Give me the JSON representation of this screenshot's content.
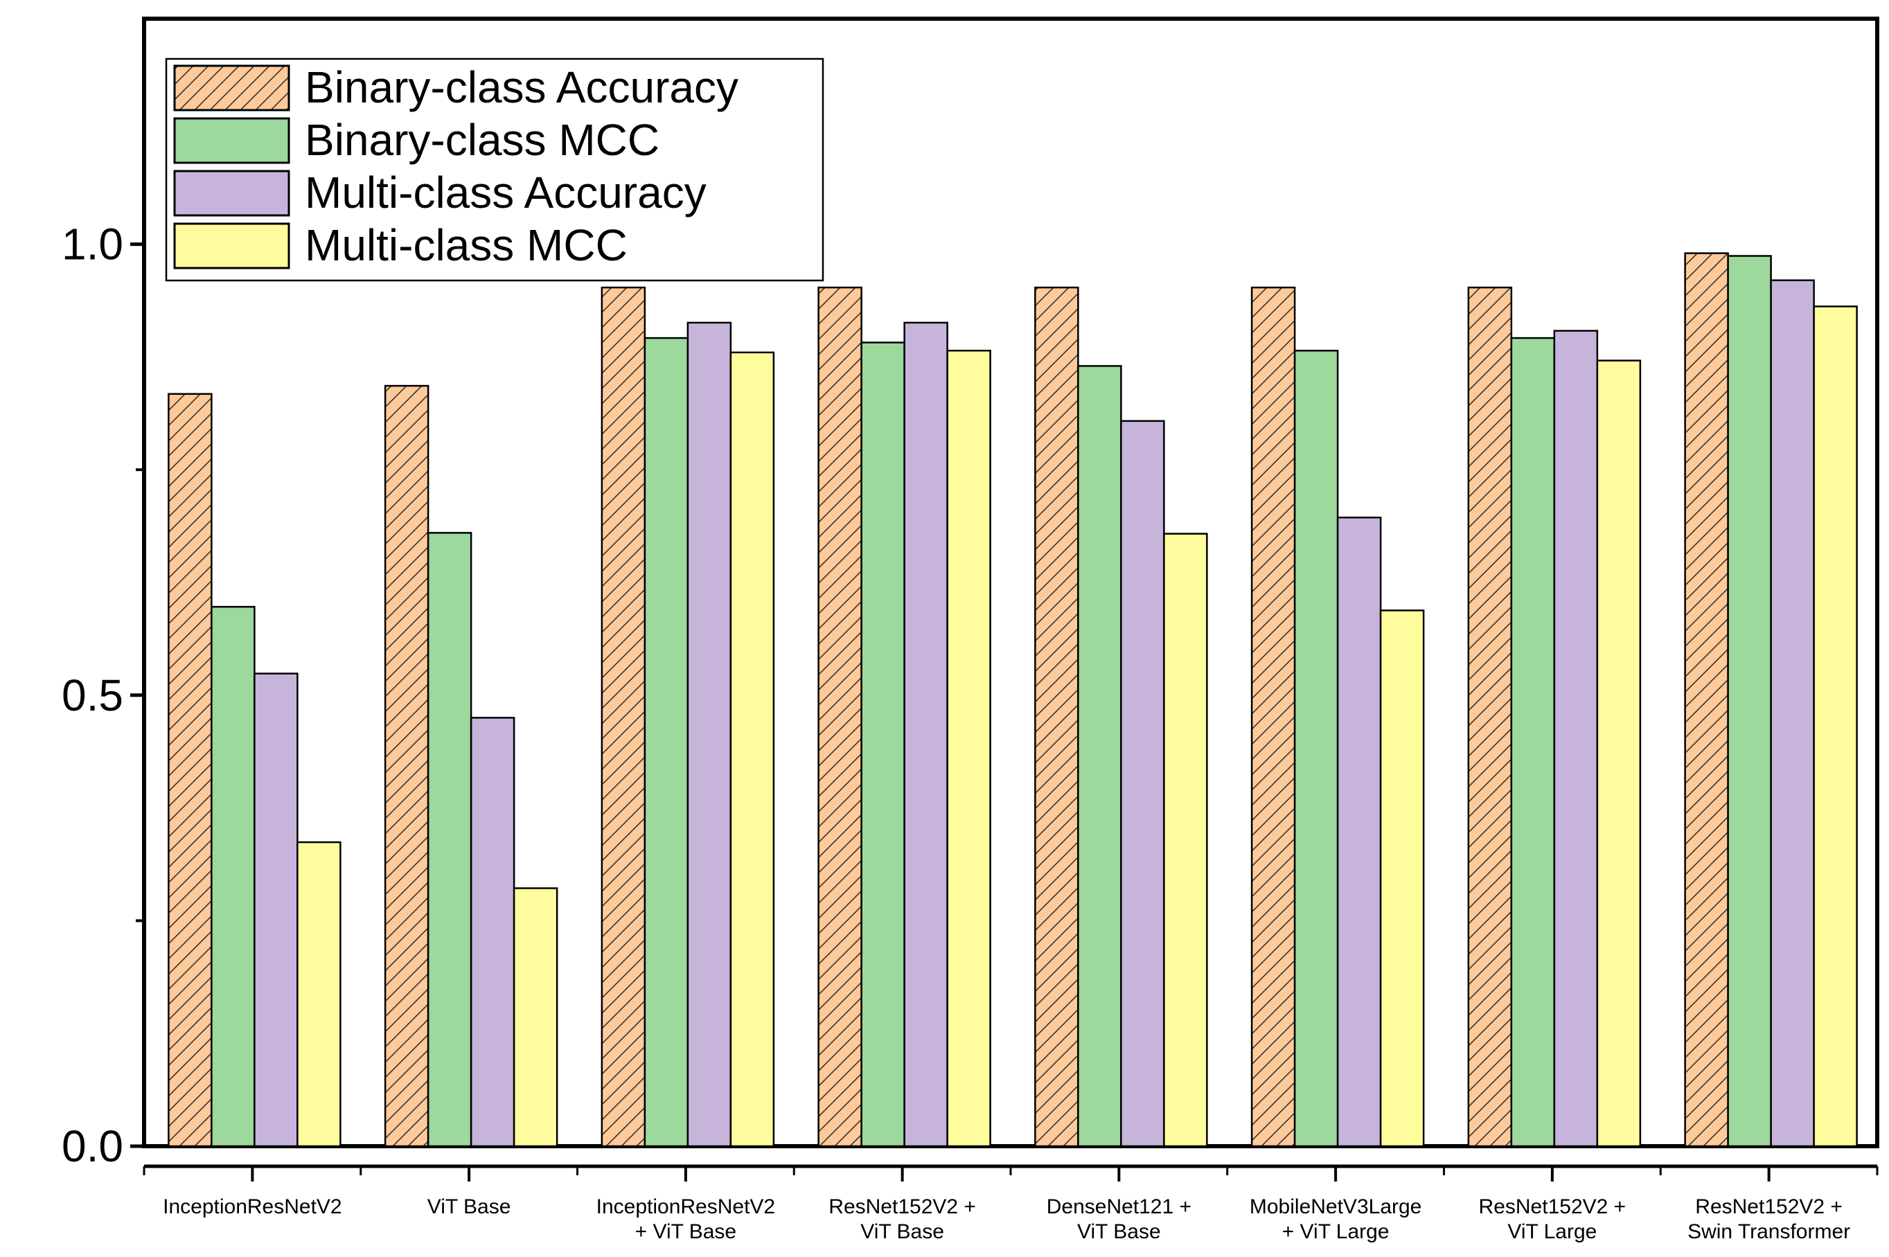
{
  "chart_data": {
    "type": "bar",
    "title": "",
    "xlabel": "",
    "ylabel": "",
    "ylim": [
      0,
      1.25
    ],
    "yticks": [
      {
        "value": 0.0,
        "label": "0.0"
      },
      {
        "value": 0.5,
        "label": "0.5"
      },
      {
        "value": 1.0,
        "label": "1.0"
      }
    ],
    "categories": [
      [
        "InceptionResNetV2"
      ],
      [
        "ViT Base"
      ],
      [
        "InceptionResNetV2",
        "+ ViT Base"
      ],
      [
        "ResNet152V2 +",
        "ViT Base"
      ],
      [
        "DenseNet121 +",
        "ViT Base"
      ],
      [
        "MobileNetV3Large",
        "+ ViT Large"
      ],
      [
        "ResNet152V2 +",
        "ViT Large"
      ],
      [
        "ResNet152V2 +",
        "Swin Transformer"
      ]
    ],
    "series": [
      {
        "name": "Binary-class Accuracy",
        "color": "#FFCA99",
        "hatch": true,
        "values": [
          0.834,
          0.843,
          0.952,
          0.952,
          0.952,
          0.952,
          0.952,
          0.99
        ]
      },
      {
        "name": "Binary-class MCC",
        "color": "#9DD89D",
        "hatch": false,
        "values": [
          0.598,
          0.68,
          0.896,
          0.891,
          0.865,
          0.882,
          0.896,
          0.987
        ]
      },
      {
        "name": "Multi-class Accuracy",
        "color": "#C7B4DA",
        "hatch": false,
        "values": [
          0.524,
          0.475,
          0.913,
          0.913,
          0.804,
          0.697,
          0.904,
          0.96
        ]
      },
      {
        "name": "Multi-class MCC",
        "color": "#FFFC9E",
        "hatch": false,
        "values": [
          0.337,
          0.286,
          0.88,
          0.882,
          0.679,
          0.594,
          0.871,
          0.931
        ]
      }
    ],
    "legend": {
      "position": "top-left"
    }
  }
}
